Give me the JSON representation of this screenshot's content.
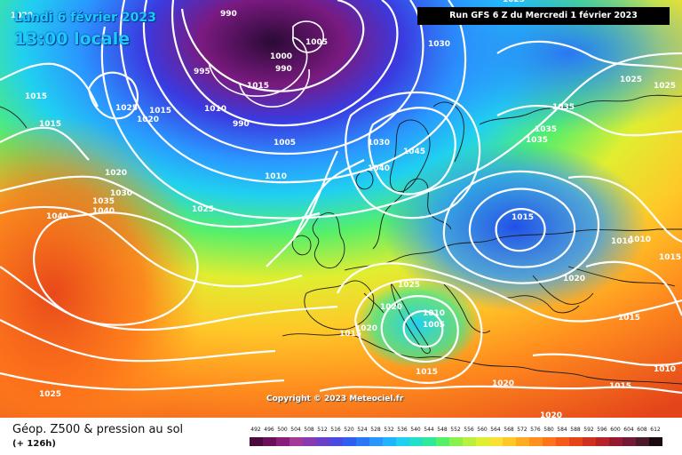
{
  "header": {
    "date": "Lundi 6 février 2023",
    "time": "13:00 locale",
    "run": "Run GFS 6 Z du Mercredi 1 février 2023"
  },
  "copyright": "Copyright © 2023 Meteociel.fr",
  "legend": {
    "title": "Géop. Z500 & pression au sol",
    "subtitle": "(+ 126h)",
    "scale_values": [
      "492",
      "496",
      "500",
      "504",
      "508",
      "512",
      "516",
      "520",
      "524",
      "528",
      "532",
      "536",
      "540",
      "544",
      "548",
      "552",
      "556",
      "560",
      "564",
      "568",
      "572",
      "576",
      "580",
      "584",
      "588",
      "592",
      "596",
      "600",
      "604",
      "608",
      "612"
    ],
    "scale_colors": [
      "#4a0a3c",
      "#6a0f5a",
      "#8a1f7a",
      "#a23a9a",
      "#8a3ab0",
      "#6a40c8",
      "#4a4ae0",
      "#2f5ff0",
      "#2a78f5",
      "#2a95ff",
      "#20b4ff",
      "#20d0f0",
      "#20e0c8",
      "#30e89a",
      "#55ef6a",
      "#88f24a",
      "#b8f040",
      "#e0ee30",
      "#fae030",
      "#ffc828",
      "#ffac22",
      "#ff901e",
      "#ff741a",
      "#f55a18",
      "#e44418",
      "#cf3020",
      "#b52228",
      "#951a30",
      "#711a36",
      "#4a1a2c",
      "#1a0a10"
    ]
  },
  "isobar_labels": [
    {
      "text": "1020"
    },
    {
      "text": "990"
    },
    {
      "text": "1015"
    },
    {
      "text": "1015"
    },
    {
      "text": "1025"
    },
    {
      "text": "1020"
    },
    {
      "text": "1015"
    },
    {
      "text": "995"
    },
    {
      "text": "1000"
    },
    {
      "text": "1015"
    },
    {
      "text": "1010"
    },
    {
      "text": "990"
    },
    {
      "text": "1005"
    },
    {
      "text": "1010"
    },
    {
      "text": "1020"
    },
    {
      "text": "1030"
    },
    {
      "text": "1035"
    },
    {
      "text": "1040"
    },
    {
      "text": "1040"
    },
    {
      "text": "1025"
    },
    {
      "text": "1030"
    },
    {
      "text": "1030"
    },
    {
      "text": "1040"
    },
    {
      "text": "1045"
    },
    {
      "text": "1025"
    },
    {
      "text": "1025"
    },
    {
      "text": "1035"
    },
    {
      "text": "1035"
    },
    {
      "text": "1035"
    },
    {
      "text": "1015"
    },
    {
      "text": "1010"
    },
    {
      "text": "1010"
    },
    {
      "text": "1015"
    },
    {
      "text": "1025"
    },
    {
      "text": "1020"
    },
    {
      "text": "1020"
    },
    {
      "text": "1010"
    },
    {
      "text": "1005"
    },
    {
      "text": "1020"
    },
    {
      "text": "1015"
    },
    {
      "text": "1015"
    },
    {
      "text": "1020"
    },
    {
      "text": "1015"
    },
    {
      "text": "1010"
    },
    {
      "text": "1015"
    },
    {
      "text": "1020"
    },
    {
      "text": "1025"
    },
    {
      "text": "990"
    },
    {
      "text": "1005"
    },
    {
      "text": "1025"
    }
  ]
}
